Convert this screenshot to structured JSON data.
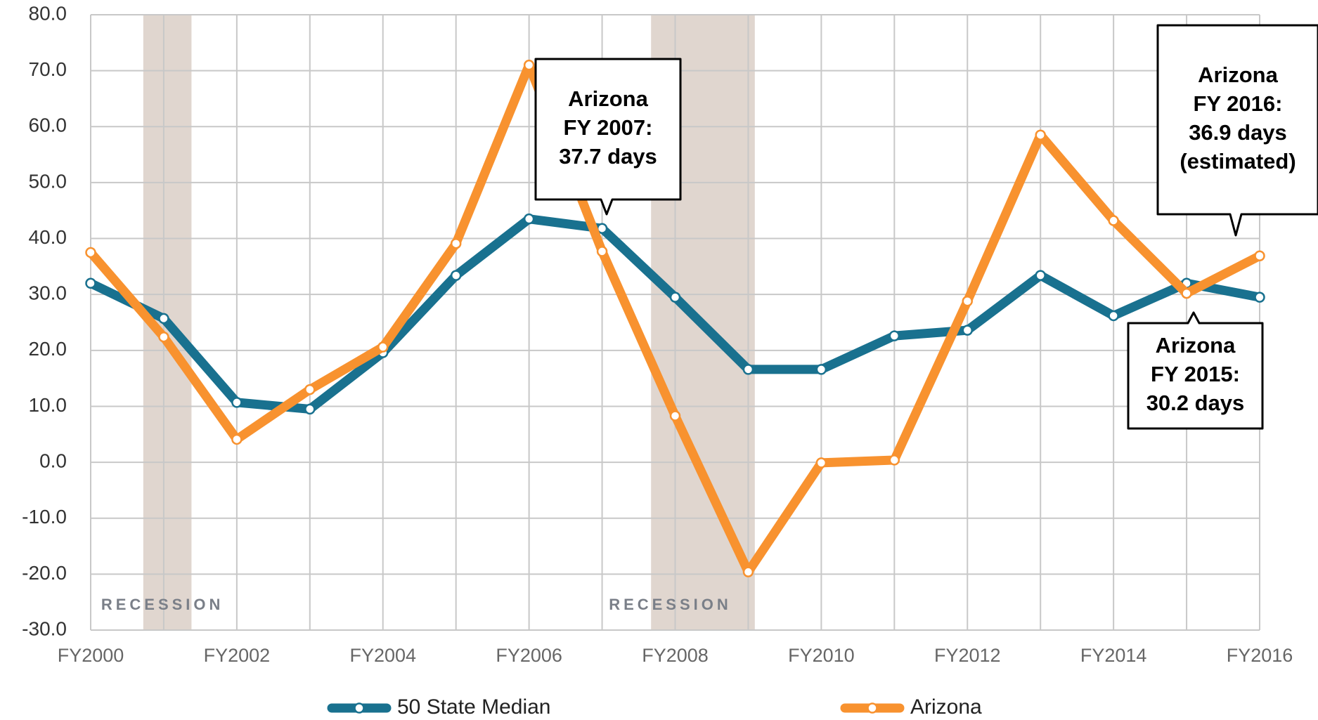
{
  "chart_data": {
    "type": "line",
    "categories": [
      "FY2000",
      null,
      "FY2002",
      null,
      "FY2004",
      null,
      "FY2006",
      null,
      "FY2008",
      null,
      "FY2010",
      null,
      "FY2012",
      null,
      "FY2014",
      null,
      "FY2016"
    ],
    "series": [
      {
        "name": "50 State Median",
        "color": "#19718f",
        "values": [
          32.0,
          25.7,
          10.7,
          9.5,
          19.6,
          33.4,
          43.5,
          41.8,
          29.5,
          16.6,
          16.6,
          22.6,
          23.6,
          33.4,
          26.2,
          32.0,
          29.5
        ]
      },
      {
        "name": "Arizona",
        "color": "#f8922f",
        "values": [
          37.5,
          22.4,
          4.1,
          13.0,
          20.6,
          39.1,
          71.0,
          37.7,
          8.3,
          -19.6,
          -0.1,
          0.4,
          28.8,
          58.5,
          43.2,
          30.2,
          36.9
        ]
      }
    ],
    "ylim": [
      -30,
      80
    ],
    "yticks": [
      {
        "value": -30,
        "label": "-30.0"
      },
      {
        "value": -20,
        "label": "-20.0"
      },
      {
        "value": -10,
        "label": "-10.0"
      },
      {
        "value": 0,
        "label": "0.0"
      },
      {
        "value": 10,
        "label": "10.0"
      },
      {
        "value": 20,
        "label": "20.0"
      },
      {
        "value": 30,
        "label": "30.0"
      },
      {
        "value": 40,
        "label": "40.0"
      },
      {
        "value": 50,
        "label": "50.0"
      },
      {
        "value": 60,
        "label": "60.0"
      },
      {
        "value": 70,
        "label": "70.0"
      },
      {
        "value": 80,
        "label": "80.0"
      }
    ],
    "grid": true,
    "legend": "bottom",
    "recessions": [
      {
        "label": "RECESSION",
        "start": 0.72,
        "end": 1.38
      },
      {
        "label": "RECESSION",
        "start": 7.67,
        "end": 9.09
      }
    ],
    "annotations": [
      {
        "lines": [
          "Arizona",
          "FY 2007:",
          "37.7 days"
        ]
      },
      {
        "lines": [
          "Arizona",
          "FY 2016:",
          "36.9 days",
          "(estimated)"
        ]
      },
      {
        "lines": [
          "Arizona",
          "FY 2015:",
          "30.2 days"
        ]
      }
    ]
  }
}
